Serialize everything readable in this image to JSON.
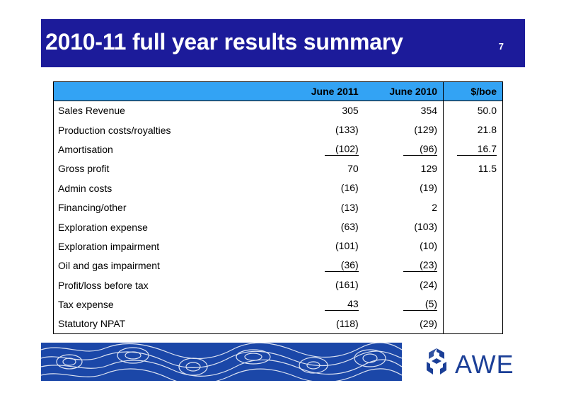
{
  "slide": {
    "title": "2010-11 full year results summary",
    "page_number": "7"
  },
  "table": {
    "columns": [
      "",
      "June 2011",
      "June 2010",
      "$/boe"
    ],
    "rows": [
      {
        "label": "Sales Revenue",
        "june2011": "305",
        "june2010": "354",
        "boe": "50.0"
      },
      {
        "label": "Production costs/royalties",
        "june2011": "(133)",
        "june2010": "(129)",
        "boe": "21.8"
      },
      {
        "label": "Amortisation",
        "june2011": "(102)",
        "june2010": "(96)",
        "boe": "16.7"
      },
      {
        "label": "Gross profit",
        "june2011": "70",
        "june2010": "129",
        "boe": "11.5"
      },
      {
        "label": "Admin costs",
        "june2011": "(16)",
        "june2010": "(19)",
        "boe": ""
      },
      {
        "label": "Financing/other",
        "june2011": "(13)",
        "june2010": "2",
        "boe": ""
      },
      {
        "label": "Exploration expense",
        "june2011": "(63)",
        "june2010": "(103)",
        "boe": ""
      },
      {
        "label": "Exploration impairment",
        "june2011": "(101)",
        "june2010": "(10)",
        "boe": ""
      },
      {
        "label": "Oil and gas impairment",
        "june2011": "(36)",
        "june2010": "(23)",
        "boe": ""
      },
      {
        "label": "Profit/loss before tax",
        "june2011": "(161)",
        "june2010": "(24)",
        "boe": ""
      },
      {
        "label": "Tax expense",
        "june2011": "43",
        "june2010": "(5)",
        "boe": ""
      },
      {
        "label": "Statutory NPAT",
        "june2011": "(118)",
        "june2010": "(29)",
        "boe": ""
      }
    ]
  },
  "logo": {
    "text": "AWE",
    "icon": "awe-logo-icon"
  },
  "colors": {
    "title_bar": "#1c1b9a",
    "table_header": "#33a3f4",
    "logo": "#1b3f97",
    "footer_art": "#1b47a8"
  }
}
